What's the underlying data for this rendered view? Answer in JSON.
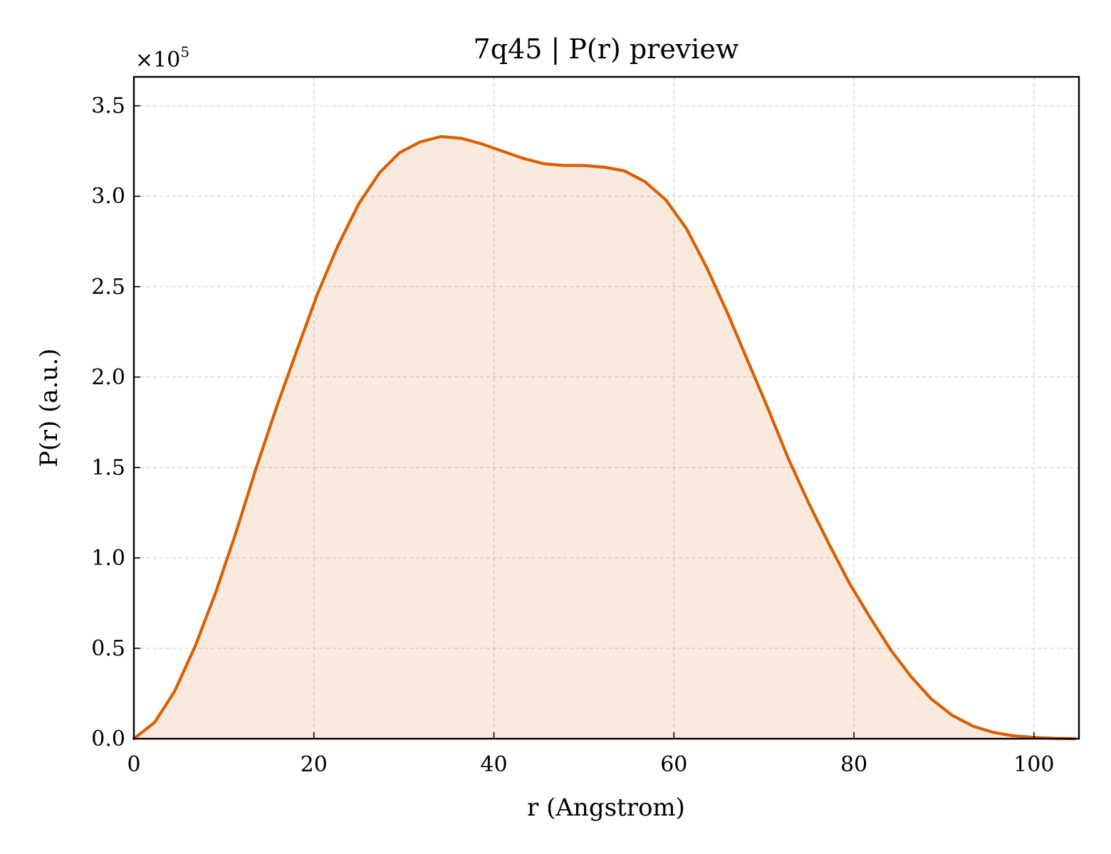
{
  "chart_data": {
    "type": "area",
    "title": "7q45 | P(r) preview",
    "xlabel": "r (Angstrom)",
    "ylabel": "P(r) (a.u.)",
    "y_multiplier_text": "×10",
    "y_multiplier_exp": "5",
    "xlim": [
      0,
      105
    ],
    "ylim": [
      0,
      3.66
    ],
    "xticks": [
      0,
      20,
      40,
      60,
      80,
      100
    ],
    "xtick_labels": [
      "0",
      "20",
      "40",
      "60",
      "80",
      "100"
    ],
    "yticks": [
      0,
      0.5,
      1.0,
      1.5,
      2.0,
      2.5,
      3.0,
      3.5
    ],
    "ytick_labels": [
      "0.0",
      "0.5",
      "1.0",
      "1.5",
      "2.0",
      "2.5",
      "3.0",
      "3.5"
    ],
    "grid": true,
    "line_color": "#d95f02",
    "fill_color": "#d95f02",
    "fill_opacity": 0.13,
    "series": [
      {
        "x": [
          0,
          2.3,
          4.5,
          6.8,
          9.1,
          11.4,
          13.6,
          15.9,
          18.2,
          20.4,
          22.7,
          25.0,
          27.3,
          29.5,
          31.8,
          34.1,
          36.4,
          38.6,
          40.9,
          43.2,
          45.5,
          47.7,
          50.0,
          52.3,
          54.5,
          56.8,
          59.1,
          61.4,
          63.6,
          65.9,
          68.2,
          70.5,
          72.7,
          75.0,
          77.3,
          79.5,
          81.8,
          84.1,
          86.4,
          88.6,
          90.9,
          93.2,
          95.5,
          97.7,
          100.0,
          102.3,
          104.5
        ],
        "y": [
          0.0,
          0.09,
          0.26,
          0.51,
          0.81,
          1.15,
          1.5,
          1.84,
          2.16,
          2.46,
          2.73,
          2.96,
          3.13,
          3.24,
          3.3,
          3.33,
          3.32,
          3.29,
          3.25,
          3.21,
          3.18,
          3.17,
          3.17,
          3.16,
          3.14,
          3.08,
          2.98,
          2.82,
          2.61,
          2.36,
          2.09,
          1.82,
          1.55,
          1.3,
          1.07,
          0.86,
          0.67,
          0.49,
          0.34,
          0.22,
          0.13,
          0.07,
          0.035,
          0.016,
          0.007,
          0.002,
          0.0
        ]
      }
    ]
  }
}
